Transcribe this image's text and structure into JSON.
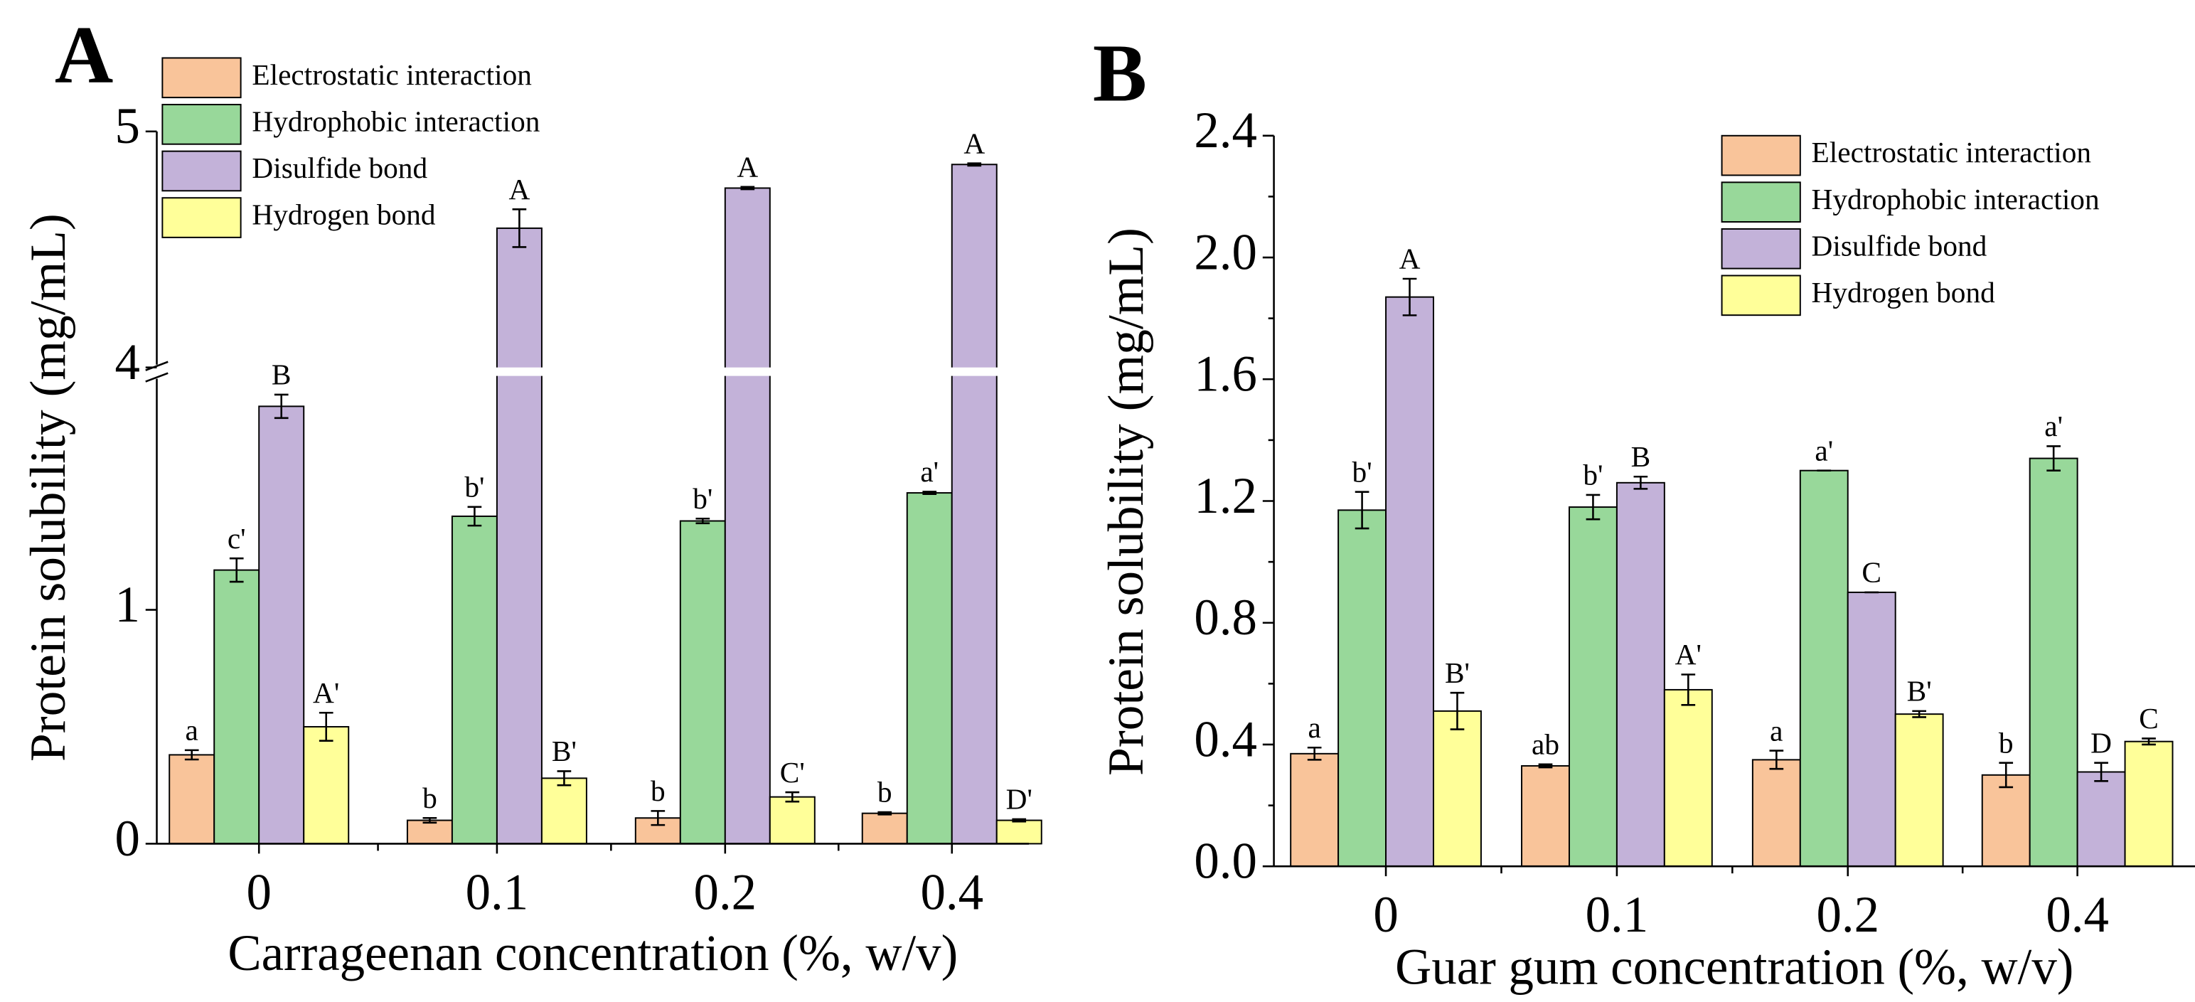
{
  "chart_data": [
    {
      "type": "bar",
      "panel": "A",
      "xlabel": "Carrageenan concentration (%, w/v)",
      "ylabel": "Protein solubility (mg/mL)",
      "categories": [
        "0",
        "0.1",
        "0.2",
        "0.4"
      ],
      "ylim": [
        0,
        5
      ],
      "ybreak": [
        2,
        4
      ],
      "yticks": [
        0,
        1,
        4,
        5
      ],
      "legend": "upper left",
      "series": [
        {
          "name": "Electrostatic interaction",
          "color": "#f9c49a",
          "values": [
            0.38,
            0.1,
            0.11,
            0.13
          ],
          "errors": [
            0.02,
            0.01,
            0.03,
            0.005
          ],
          "letters": [
            "a",
            "b",
            "b",
            "b"
          ]
        },
        {
          "name": "Hydrophobic interaction",
          "color": "#98d89a",
          "values": [
            1.17,
            1.4,
            1.38,
            1.5
          ],
          "errors": [
            0.05,
            0.04,
            0.01,
            0.005
          ],
          "letters": [
            "c'",
            "b'",
            "b'",
            "a'"
          ]
        },
        {
          "name": "Disulfide bond",
          "color": "#c3b2d9",
          "values": [
            1.87,
            4.59,
            4.76,
            4.86
          ],
          "errors": [
            0.05,
            0.08,
            0.005,
            0.005
          ],
          "letters": [
            "B",
            "A",
            "A",
            "A"
          ]
        },
        {
          "name": "Hydrogen bond",
          "color": "#ffff99",
          "values": [
            0.5,
            0.28,
            0.2,
            0.1
          ],
          "errors": [
            0.06,
            0.03,
            0.02,
            0.005
          ],
          "letters": [
            "A'",
            "B'",
            "C'",
            "D'"
          ]
        }
      ]
    },
    {
      "type": "bar",
      "panel": "B",
      "xlabel": "Guar gum concentration (%, w/v)",
      "ylabel": "Protein solubility (mg/mL)",
      "categories": [
        "0",
        "0.1",
        "0.2",
        "0.4"
      ],
      "ylim": [
        0,
        2.4
      ],
      "yticks": [
        {
          "value": 0,
          "label": "0.0"
        },
        {
          "value": 0.4,
          "label": "0.4"
        },
        {
          "value": 0.8,
          "label": "0.8"
        },
        {
          "value": 1.2,
          "label": "1.2"
        },
        {
          "value": 1.6,
          "label": "1.6"
        },
        {
          "value": 2.0,
          "label": "2.0"
        },
        {
          "value": 2.4,
          "label": "2.4"
        }
      ],
      "legend": "upper right",
      "series": [
        {
          "name": "Electrostatic interaction",
          "color": "#f9c49a",
          "values": [
            0.37,
            0.33,
            0.35,
            0.3
          ],
          "errors": [
            0.02,
            0.005,
            0.03,
            0.04
          ],
          "letters": [
            "a",
            "ab",
            "a",
            "b"
          ]
        },
        {
          "name": "Hydrophobic interaction",
          "color": "#98d89a",
          "values": [
            1.17,
            1.18,
            1.3,
            1.34
          ],
          "errors": [
            0.06,
            0.04,
            0,
            0.04
          ],
          "letters": [
            "b'",
            "b'",
            "a'",
            "a'"
          ]
        },
        {
          "name": "Disulfide bond",
          "color": "#c3b2d9",
          "values": [
            1.87,
            1.26,
            0.9,
            0.31
          ],
          "errors": [
            0.06,
            0.02,
            0,
            0.03
          ],
          "letters": [
            "A",
            "B",
            "C",
            "D"
          ]
        },
        {
          "name": "Hydrogen bond",
          "color": "#ffff99",
          "values": [
            0.51,
            0.58,
            0.5,
            0.41
          ],
          "errors": [
            0.06,
            0.05,
            0.01,
            0.01
          ],
          "letters": [
            "B'",
            "A'",
            "B'",
            "C"
          ]
        }
      ]
    }
  ]
}
